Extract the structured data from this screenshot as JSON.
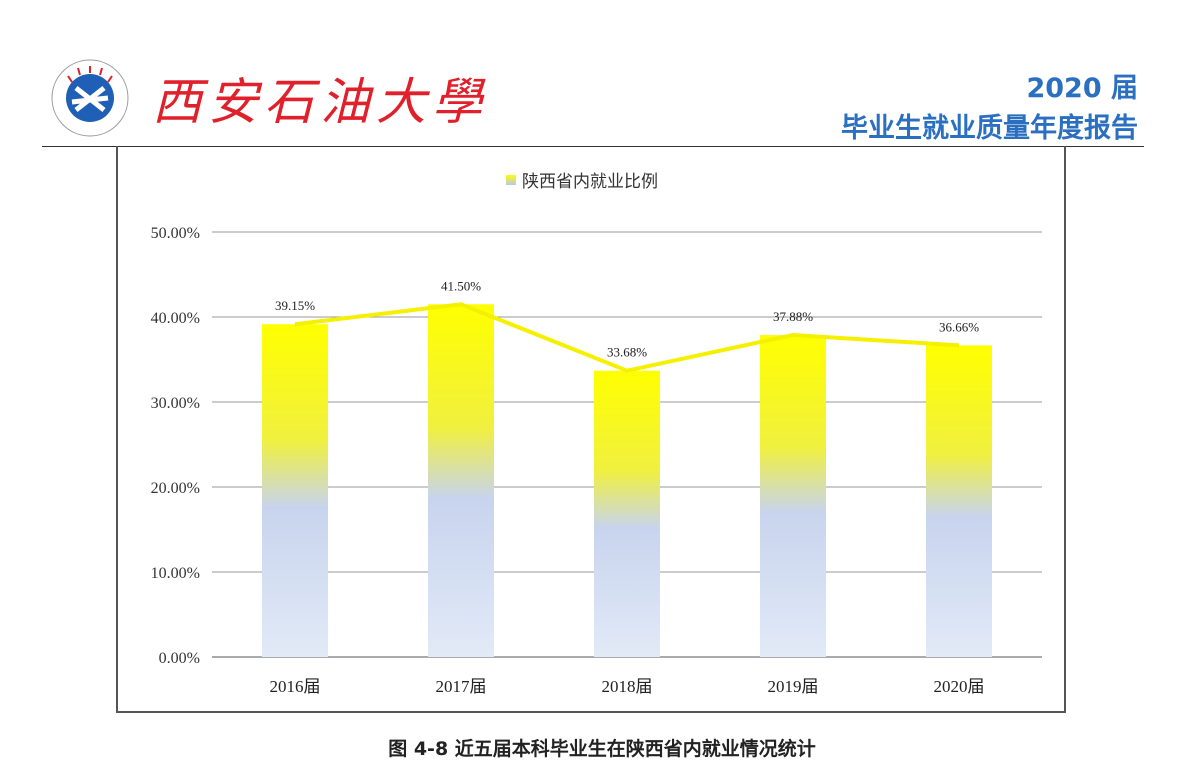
{
  "header": {
    "university": "西安石油大學",
    "year": "2020 届",
    "report_title": "毕业生就业质量年度报告"
  },
  "caption": "图 4-8  近五届本科毕业生在陕西省内就业情况统计",
  "colors": {
    "bar_top": "#ffff00",
    "bar_bottom": "#dce6f5",
    "line": "#f5f000",
    "header_blue": "#2a6fc0",
    "logo_red": "#e0202a"
  },
  "chart_data": {
    "type": "bar",
    "categories": [
      "2016届",
      "2017届",
      "2018届",
      "2019届",
      "2020届"
    ],
    "series": [
      {
        "name": "陕西省内就业比例",
        "values": [
          39.15,
          41.5,
          33.68,
          37.88,
          36.66
        ]
      }
    ],
    "data_labels": [
      "39.15%",
      "41.50%",
      "33.68%",
      "37.88%",
      "36.66%"
    ],
    "overlay_line": true,
    "ylim": [
      0,
      50
    ],
    "yticks": [
      "0.00%",
      "10.00%",
      "20.00%",
      "30.00%",
      "40.00%",
      "50.00%"
    ],
    "grid": true,
    "legend": "top-center"
  }
}
